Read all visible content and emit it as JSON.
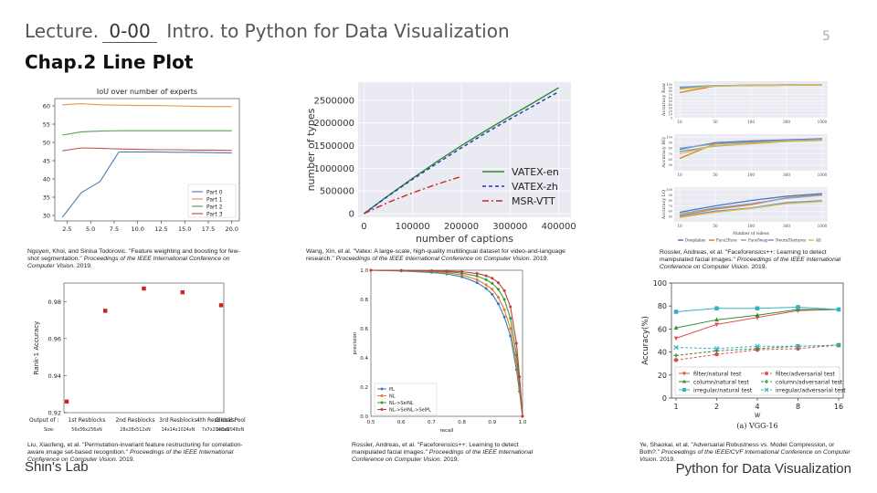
{
  "header": {
    "lecture_label": "Lecture.",
    "lecture_number": "0-00",
    "course_title": "Intro. to Python for Data Visualization",
    "chapter_title": "Chap.2 Line Plot",
    "page_number": "5"
  },
  "footer": {
    "lab": "Shin's Lab",
    "course": "Python for Data Visualization"
  },
  "captions": {
    "c1_plain": "Nguyen, Khoi, and Sinisa Todorovic. \"Feature weighting and boosting for few-shot segmentation.\" ",
    "c1_italic": "Proceedings of the IEEE International Conference on Computer Vision",
    "c1_year": ". 2019.",
    "c2_plain": "Wang, Xin, et al. \"Vatex: A large-scale, high-quality multilingual dataset for video-and-language research.\" ",
    "c2_italic": "Proceedings of the IEEE International Conference on Computer Vision",
    "c2_year": ". 2019.",
    "c3_plain": "Rossler, Andreas, et al. \"Faceforensics++: Learning to detect manipulated facial images.\" ",
    "c3_italic": "Proceedings of the IEEE International Conference on Computer Vision",
    "c3_year": ". 2019.",
    "c4_plain": "Liu, Xiaofeng, et al. \"Permutation-invariant feature restructuring for correlation-aware image set-based recognition.\" ",
    "c4_italic": "Proceedings of the IEEE International Conference on Computer Vision",
    "c4_year": ". 2019.",
    "c5_plain": "Rossler, Andreas, et al. \"Faceforensics++: Learning to detect manipulated facial images.\" ",
    "c5_italic": "Proceedings of the IEEE International Conference on Computer Vision",
    "c5_year": ". 2019.",
    "c6_plain": "Ye, Shaokai, et al. \"Adversarial Robustness vs. Model Compression, or Both?.\" ",
    "c6_italic": "Proceedings of the IEEE/CVF International Conference on Computer Vision",
    "c6_year": ". 2019."
  },
  "chart_data": [
    {
      "id": "iou",
      "type": "line",
      "title": "IoU over number of experts",
      "x": [
        2,
        4,
        6,
        8,
        10,
        12,
        14,
        16,
        18,
        20
      ],
      "xlim": [
        1.2,
        20.8
      ],
      "ylim": [
        28.5,
        62
      ],
      "xticks": [
        2.5,
        5.0,
        7.5,
        10.0,
        12.5,
        15.0,
        17.5,
        20.0
      ],
      "xtick_labels": [
        "2.5",
        "5.0",
        "7.5",
        "10.0",
        "12.5",
        "15.0",
        "17.5",
        "20.0"
      ],
      "yticks": [
        30,
        35,
        40,
        45,
        50,
        55,
        60
      ],
      "series": [
        {
          "name": "Part 0",
          "color": "#4f7fb0",
          "values": [
            29.5,
            36.2,
            39.3,
            47.4,
            47.4,
            47.4,
            47.3,
            47.3,
            47.2,
            47.1
          ]
        },
        {
          "name": "Part 1",
          "color": "#e8964a",
          "values": [
            60.3,
            60.6,
            60.3,
            60.2,
            60.1,
            60.1,
            60.0,
            59.9,
            59.8,
            59.8
          ]
        },
        {
          "name": "Part 2",
          "color": "#5a9e5a",
          "values": [
            52.0,
            52.9,
            53.1,
            53.2,
            53.2,
            53.2,
            53.2,
            53.2,
            53.2,
            53.2
          ]
        },
        {
          "name": "Part 3",
          "color": "#c8504e",
          "values": [
            47.7,
            48.5,
            48.4,
            48.2,
            48.1,
            48.0,
            48.0,
            47.9,
            47.9,
            47.8
          ]
        }
      ]
    },
    {
      "id": "vatex",
      "type": "line",
      "xlabel": "number of captions",
      "ylabel": "number of types",
      "xlim": [
        -12000,
        425000
      ],
      "ylim": [
        -80000,
        2900000
      ],
      "xticks": [
        0,
        100000,
        200000,
        300000,
        400000
      ],
      "xtick_labels": [
        "0",
        "100000",
        "200000",
        "300000",
        "400000"
      ],
      "yticks": [
        0,
        500000,
        1000000,
        1500000,
        2000000,
        2500000
      ],
      "ytick_labels": [
        "0",
        "500000",
        "1000000",
        "1500000",
        "2000000",
        "2500000"
      ],
      "series": [
        {
          "name": "VATEX-en",
          "color": "#2e8b2e",
          "dash": "",
          "x": [
            0,
            50000,
            100000,
            150000,
            200000,
            250000,
            300000,
            350000,
            400000
          ],
          "values": [
            0,
            400000,
            780000,
            1150000,
            1500000,
            1830000,
            2150000,
            2460000,
            2780000
          ]
        },
        {
          "name": "VATEX-zh",
          "color": "#2233bb",
          "dash": "4,3",
          "x": [
            0,
            50000,
            100000,
            150000,
            200000,
            250000,
            300000,
            350000,
            400000
          ],
          "values": [
            0,
            390000,
            760000,
            1110000,
            1450000,
            1780000,
            2090000,
            2390000,
            2690000
          ]
        },
        {
          "name": "MSR-VTT",
          "color": "#d22222",
          "dash": "7,3,2,3",
          "x": [
            0,
            50000,
            100000,
            150000,
            200000
          ],
          "values": [
            0,
            250000,
            460000,
            650000,
            820000
          ]
        }
      ]
    },
    {
      "id": "rankacc",
      "type": "scatter",
      "ylabel": "Rank-1 Accuracy",
      "categories": [
        "1st Resblocks",
        "2nd Resblocks",
        "3rd Resblocks",
        "4th Resblocks",
        "Global Pool"
      ],
      "category_top": [
        "1",
        "2",
        "3",
        "4",
        ""
      ],
      "category_sizes": [
        "56x56x256xN",
        "28x28x512xN",
        "14x14x1024xN",
        "7x7x2048xN",
        "1x1x2048xN"
      ],
      "output_label": "Output of :",
      "size_label": "Size:",
      "values": [
        0.926,
        0.975,
        0.987,
        0.985,
        0.978
      ],
      "ylim": [
        0.92,
        0.99
      ],
      "yticks": [
        0.92,
        0.94,
        0.96,
        0.98
      ],
      "color": "#cc2222"
    },
    {
      "id": "pr",
      "type": "line",
      "xlabel": "recall",
      "ylabel": "precision",
      "xlim": [
        0.5,
        1.0
      ],
      "ylim": [
        0.0,
        1.0
      ],
      "xticks": [
        0.5,
        0.6,
        0.7,
        0.8,
        0.9,
        1.0
      ],
      "yticks": [
        0.0,
        0.2,
        0.4,
        0.6,
        0.8,
        1.0
      ],
      "series": [
        {
          "name": "PL",
          "color": "#3a78b8",
          "x": [
            0.5,
            0.6,
            0.7,
            0.75,
            0.8,
            0.85,
            0.88,
            0.9,
            0.92,
            0.94,
            0.96,
            0.98,
            0.99,
            1.0
          ],
          "values": [
            1.0,
            0.995,
            0.985,
            0.975,
            0.955,
            0.915,
            0.875,
            0.835,
            0.77,
            0.68,
            0.55,
            0.32,
            0.17,
            0.0
          ]
        },
        {
          "name": "NL",
          "color": "#e07b2a",
          "x": [
            0.5,
            0.6,
            0.7,
            0.75,
            0.8,
            0.85,
            0.88,
            0.9,
            0.92,
            0.94,
            0.96,
            0.98,
            0.99,
            1.0
          ],
          "values": [
            1.0,
            0.997,
            0.99,
            0.983,
            0.968,
            0.935,
            0.9,
            0.87,
            0.815,
            0.73,
            0.6,
            0.36,
            0.19,
            0.0
          ]
        },
        {
          "name": "NL->SelNL",
          "color": "#3a9a3a",
          "x": [
            0.5,
            0.6,
            0.7,
            0.75,
            0.8,
            0.85,
            0.88,
            0.9,
            0.92,
            0.94,
            0.96,
            0.98,
            0.99,
            1.0
          ],
          "values": [
            1.0,
            0.998,
            0.994,
            0.99,
            0.98,
            0.96,
            0.935,
            0.91,
            0.87,
            0.8,
            0.67,
            0.42,
            0.22,
            0.0
          ]
        },
        {
          "name": "NL->SelNL->SelPL",
          "color": "#c83a3a",
          "x": [
            0.5,
            0.6,
            0.7,
            0.75,
            0.8,
            0.85,
            0.88,
            0.9,
            0.92,
            0.94,
            0.96,
            0.98,
            0.99,
            1.0
          ],
          "values": [
            1.0,
            0.999,
            0.997,
            0.995,
            0.99,
            0.978,
            0.962,
            0.945,
            0.915,
            0.86,
            0.75,
            0.5,
            0.27,
            0.0
          ]
        }
      ]
    },
    {
      "id": "vgg",
      "type": "line",
      "title": "(a) VGG-16",
      "xlabel": "w",
      "ylabel": "Accuracy(%)",
      "categories": [
        "1",
        "2",
        "4",
        "8",
        "16"
      ],
      "ylim": [
        0,
        100
      ],
      "yticks": [
        0,
        20,
        40,
        60,
        80,
        100
      ],
      "series": [
        {
          "name": "filter/natural test",
          "color": "#e0504a",
          "marker": "v",
          "dash": "",
          "values": [
            52,
            64,
            70,
            76,
            77
          ]
        },
        {
          "name": "column/natural test",
          "color": "#3a8a3a",
          "marker": "^",
          "dash": "",
          "values": [
            61,
            68,
            72,
            77,
            77
          ]
        },
        {
          "name": "irregular/natural test",
          "color": "#3bb0c0",
          "marker": "s",
          "dash": "",
          "values": [
            75,
            78,
            78,
            79,
            77
          ]
        },
        {
          "name": "filter/adversarial test",
          "color": "#e0504a",
          "marker": "o",
          "dash": "3,2",
          "values": [
            33,
            38,
            42,
            43,
            46
          ]
        },
        {
          "name": "column/adversarial test",
          "color": "#3a8a3a",
          "marker": "+",
          "dash": "3,2",
          "values": [
            37,
            41,
            43,
            45,
            46
          ]
        },
        {
          "name": "irregular/adversarial test",
          "color": "#3bb0c0",
          "marker": "x",
          "dash": "3,2",
          "values": [
            44,
            43,
            45,
            45,
            46
          ]
        }
      ]
    },
    {
      "id": "ff_raw",
      "type": "line",
      "ylabel": "Accuracy Raw",
      "categories": [
        "10",
        "50",
        "100",
        "300",
        "1000"
      ],
      "ylim": [
        0,
        110
      ],
      "yticks": [
        0,
        10,
        20,
        30,
        40,
        50,
        60,
        70,
        80,
        90,
        100
      ],
      "series": [
        {
          "name": "Deepfakes",
          "color": "#4a78b8",
          "values": [
            90,
            97,
            98,
            99,
            99
          ]
        },
        {
          "name": "Face2Face",
          "color": "#e07b2a",
          "values": [
            76,
            96,
            97,
            98,
            99
          ]
        },
        {
          "name": "FaceSwap",
          "color": "#8aa0c0",
          "values": [
            88,
            95,
            98,
            99,
            99
          ]
        },
        {
          "name": "NeuralTextures",
          "color": "#6a9ad0",
          "values": [
            92,
            97,
            98,
            99,
            99
          ]
        },
        {
          "name": "All",
          "color": "#e0c040",
          "values": [
            86,
            96,
            97,
            98,
            99
          ]
        }
      ]
    },
    {
      "id": "ff_hq",
      "type": "line",
      "ylabel": "Accuracy HQ",
      "categories": [
        "10",
        "50",
        "100",
        "300",
        "1000"
      ],
      "ylim": [
        40,
        105
      ],
      "yticks": [
        50,
        60,
        70,
        80,
        90,
        100
      ],
      "series": [
        {
          "name": "Deepfakes",
          "color": "#4a78b8",
          "values": [
            78,
            90,
            93,
            95,
            97
          ]
        },
        {
          "name": "Face2Face",
          "color": "#e07b2a",
          "values": [
            62,
            88,
            90,
            93,
            95
          ]
        },
        {
          "name": "FaceSwap",
          "color": "#8aa0c0",
          "values": [
            80,
            88,
            91,
            94,
            96
          ]
        },
        {
          "name": "NeuralTextures",
          "color": "#6a9ad0",
          "values": [
            74,
            84,
            88,
            92,
            94
          ]
        },
        {
          "name": "All",
          "color": "#e0c040",
          "values": [
            70,
            85,
            88,
            92,
            94
          ]
        }
      ]
    },
    {
      "id": "ff_lq",
      "type": "line",
      "ylabel": "Accuracy LQ",
      "categories": [
        "10",
        "50",
        "100",
        "300",
        "1000"
      ],
      "ylim": [
        40,
        105
      ],
      "yticks": [
        50,
        60,
        70,
        80,
        90,
        100
      ],
      "series": [
        {
          "name": "Deepfakes",
          "color": "#4a78b8",
          "values": [
            58,
            70,
            80,
            88,
            93
          ]
        },
        {
          "name": "Face2Face",
          "color": "#e07b2a",
          "values": [
            52,
            64,
            72,
            85,
            91
          ]
        },
        {
          "name": "FaceSwap",
          "color": "#8aa0c0",
          "values": [
            55,
            66,
            74,
            84,
            90
          ]
        },
        {
          "name": "NeuralTextures",
          "color": "#6a9ad0",
          "values": [
            50,
            60,
            66,
            76,
            80
          ]
        },
        {
          "name": "All",
          "color": "#e0c040",
          "values": [
            48,
            58,
            65,
            74,
            78
          ]
        }
      ],
      "xlabel": "Number of videos"
    }
  ]
}
